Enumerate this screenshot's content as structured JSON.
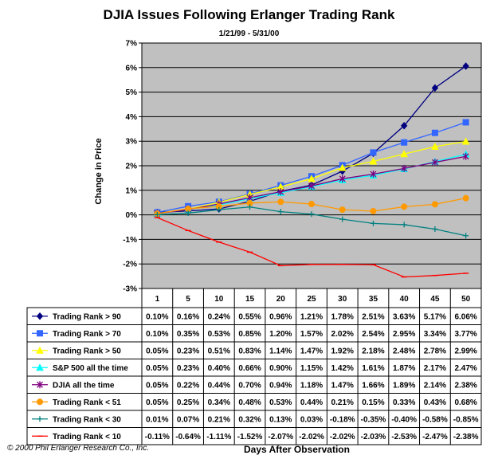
{
  "chart_data": {
    "type": "line",
    "title": "DJIA Issues Following Erlanger Trading Rank",
    "subtitle": "1/21/99 - 5/31/00",
    "ylabel": "Change in Price",
    "xlabel": "Days After Observation",
    "ylim": [
      -3,
      7
    ],
    "yticks": [
      "-3%",
      "-2%",
      "-1%",
      "0%",
      "1%",
      "2%",
      "3%",
      "4%",
      "5%",
      "6%",
      "7%"
    ],
    "grid": true,
    "legend": "data-table",
    "categories": [
      "1",
      "5",
      "10",
      "15",
      "20",
      "25",
      "30",
      "35",
      "40",
      "45",
      "50"
    ],
    "series": [
      {
        "name": "Trading Rank > 90",
        "color": "#000080",
        "marker": "diamond",
        "values": [
          0.1,
          0.16,
          0.24,
          0.55,
          0.96,
          1.21,
          1.78,
          2.51,
          3.63,
          5.17,
          6.06
        ],
        "labels": [
          "0.10%",
          "0.16%",
          "0.24%",
          "0.55%",
          "0.96%",
          "1.21%",
          "1.78%",
          "2.51%",
          "3.63%",
          "5.17%",
          "6.06%"
        ]
      },
      {
        "name": "Trading Rank > 70",
        "color": "#3366ff",
        "marker": "square",
        "values": [
          0.1,
          0.35,
          0.53,
          0.85,
          1.2,
          1.57,
          2.02,
          2.54,
          2.95,
          3.34,
          3.77
        ],
        "labels": [
          "0.10%",
          "0.35%",
          "0.53%",
          "0.85%",
          "1.20%",
          "1.57%",
          "2.02%",
          "2.54%",
          "2.95%",
          "3.34%",
          "3.77%"
        ]
      },
      {
        "name": "Trading Rank > 50",
        "color": "#ffff00",
        "marker": "triangle",
        "values": [
          0.05,
          0.23,
          0.51,
          0.83,
          1.14,
          1.47,
          1.92,
          2.18,
          2.48,
          2.78,
          2.99
        ],
        "labels": [
          "0.05%",
          "0.23%",
          "0.51%",
          "0.83%",
          "1.14%",
          "1.47%",
          "1.92%",
          "2.18%",
          "2.48%",
          "2.78%",
          "2.99%"
        ]
      },
      {
        "name": "S&P 500 all the time",
        "color": "#00ffff",
        "marker": "triangle",
        "values": [
          0.05,
          0.23,
          0.4,
          0.66,
          0.9,
          1.15,
          1.42,
          1.61,
          1.87,
          2.17,
          2.47
        ],
        "labels": [
          "0.05%",
          "0.23%",
          "0.40%",
          "0.66%",
          "0.90%",
          "1.15%",
          "1.42%",
          "1.61%",
          "1.87%",
          "2.17%",
          "2.47%"
        ]
      },
      {
        "name": "DJIA all the time",
        "color": "#800080",
        "marker": "star",
        "values": [
          0.05,
          0.22,
          0.44,
          0.7,
          0.94,
          1.18,
          1.47,
          1.66,
          1.89,
          2.14,
          2.38
        ],
        "labels": [
          "0.05%",
          "0.22%",
          "0.44%",
          "0.70%",
          "0.94%",
          "1.18%",
          "1.47%",
          "1.66%",
          "1.89%",
          "2.14%",
          "2.38%"
        ]
      },
      {
        "name": "Trading Rank < 51",
        "color": "#ff9900",
        "marker": "circle",
        "values": [
          0.05,
          0.25,
          0.34,
          0.48,
          0.53,
          0.44,
          0.21,
          0.15,
          0.33,
          0.43,
          0.68
        ],
        "labels": [
          "0.05%",
          "0.25%",
          "0.34%",
          "0.48%",
          "0.53%",
          "0.44%",
          "0.21%",
          "0.15%",
          "0.33%",
          "0.43%",
          "0.68%"
        ]
      },
      {
        "name": "Trading Rank < 30",
        "color": "#008080",
        "marker": "plus",
        "values": [
          0.01,
          0.07,
          0.21,
          0.32,
          0.13,
          0.03,
          -0.18,
          -0.35,
          -0.4,
          -0.58,
          -0.85
        ],
        "labels": [
          "0.01%",
          "0.07%",
          "0.21%",
          "0.32%",
          "0.13%",
          "0.03%",
          "-0.18%",
          "-0.35%",
          "-0.40%",
          "-0.58%",
          "-0.85%"
        ]
      },
      {
        "name": "Trading Rank < 10",
        "color": "#ff0000",
        "marker": "dash",
        "values": [
          -0.11,
          -0.64,
          -1.11,
          -1.52,
          -2.07,
          -2.02,
          -2.02,
          -2.03,
          -2.53,
          -2.47,
          -2.38
        ],
        "labels": [
          "-0.11%",
          "-0.64%",
          "-1.11%",
          "-1.52%",
          "-2.07%",
          "-2.02%",
          "-2.02%",
          "-2.03%",
          "-2.53%",
          "-2.47%",
          "-2.38%"
        ]
      }
    ],
    "plot_background": "#c0c0c0"
  },
  "footer": {
    "credit": "© 2000 Phil Erlanger Research Co., Inc."
  }
}
